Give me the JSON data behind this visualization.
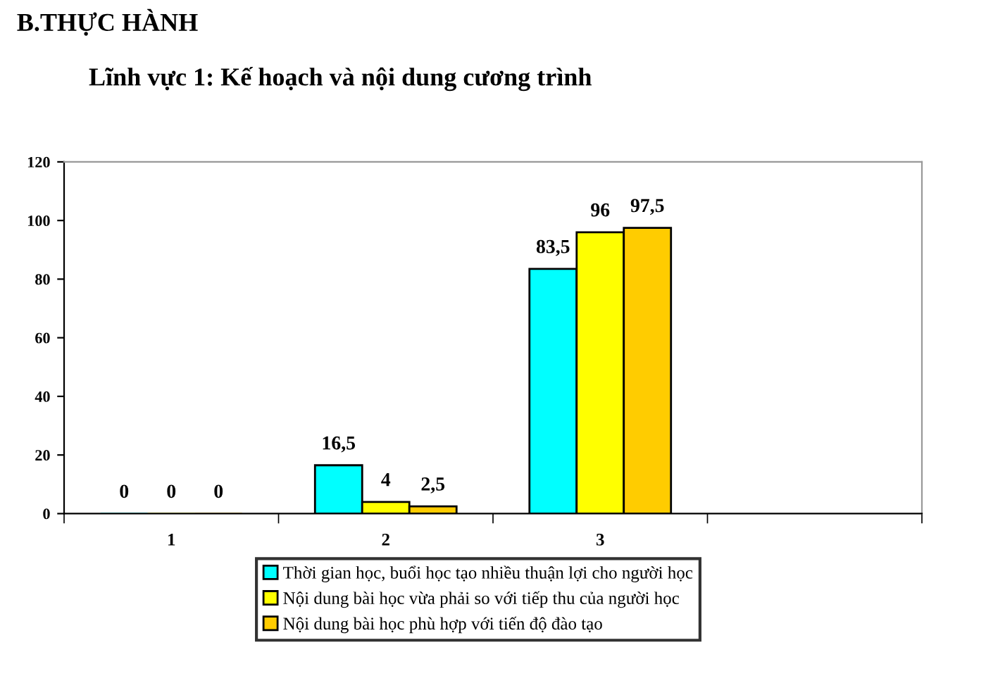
{
  "chart_data": {
    "type": "bar",
    "title": "Lĩnh vực 1: Kế hoạch và nội dung cương trình",
    "annotations": [
      "B.THỰC HÀNH"
    ],
    "categories": [
      "1",
      "2",
      "3",
      null
    ],
    "series": [
      {
        "name": "Thời gian học, buổi học tạo nhiều thuận lợi cho người học",
        "color": "#00ffff",
        "values": [
          0,
          16.5,
          83.5,
          null
        ],
        "value_labels": [
          "0",
          "16,5",
          "83,5",
          null
        ]
      },
      {
        "name": "Nội dung bài học vừa phải so với tiếp thu của người học",
        "color": "#ffff00",
        "values": [
          0,
          4,
          96,
          null
        ],
        "value_labels": [
          "0",
          "4",
          "96",
          null
        ]
      },
      {
        "name": "Nội dung bài học phù hợp với tiến độ đào tạo",
        "color": "#ffcc00",
        "values": [
          0,
          2.5,
          97.5,
          null
        ],
        "value_labels": [
          "0",
          "2,5",
          "97,5",
          null
        ]
      }
    ],
    "ylim": [
      0,
      120
    ],
    "yticks": [
      0,
      20,
      40,
      60,
      80,
      100,
      120
    ],
    "grid": false,
    "legend": "bottom"
  }
}
